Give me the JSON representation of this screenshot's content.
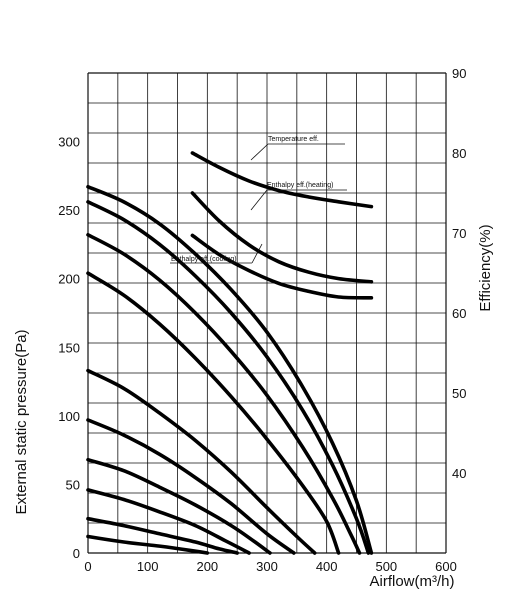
{
  "chart_data": {
    "type": "line",
    "xlabel": "Airflow(m³/h)",
    "ylabel": "External static pressure(Pa)",
    "y2label": "Efficiency(%)",
    "xlim": [
      0,
      600
    ],
    "ylim": [
      0,
      350
    ],
    "y2lim": [
      30,
      90
    ],
    "grid": true,
    "x_ticks": [
      "0",
      "100",
      "200",
      "300",
      "400",
      "500",
      "600"
    ],
    "y_ticks": [
      "0",
      "50",
      "100",
      "150",
      "200",
      "250",
      "300"
    ],
    "y2_ticks": [
      "40",
      "50",
      "60",
      "70",
      "80",
      "90"
    ],
    "static_pressure_series": [
      {
        "x": [
          0,
          60,
          120,
          170,
          200
        ],
        "y": [
          12,
          8,
          5,
          2,
          0
        ]
      },
      {
        "x": [
          0,
          60,
          120,
          180,
          220,
          250
        ],
        "y": [
          25,
          20,
          14,
          8,
          3,
          0
        ]
      },
      {
        "x": [
          0,
          60,
          120,
          180,
          230,
          270
        ],
        "y": [
          46,
          39,
          30,
          20,
          9,
          0
        ]
      },
      {
        "x": [
          0,
          60,
          120,
          180,
          240,
          280,
          305
        ],
        "y": [
          68,
          60,
          48,
          35,
          20,
          8,
          0
        ]
      },
      {
        "x": [
          0,
          60,
          120,
          180,
          240,
          300,
          345
        ],
        "y": [
          97,
          86,
          72,
          55,
          36,
          14,
          0
        ]
      },
      {
        "x": [
          0,
          60,
          120,
          180,
          240,
          300,
          350,
          380
        ],
        "y": [
          133,
          120,
          102,
          82,
          59,
          33,
          12,
          0
        ]
      },
      {
        "x": [
          0,
          60,
          120,
          180,
          240,
          300,
          360,
          400,
          420
        ],
        "y": [
          204,
          188,
          167,
          142,
          114,
          83,
          49,
          23,
          0
        ]
      },
      {
        "x": [
          0,
          60,
          120,
          180,
          240,
          300,
          360,
          410,
          440,
          455
        ],
        "y": [
          232,
          218,
          199,
          175,
          147,
          115,
          77,
          40,
          14,
          0
        ]
      },
      {
        "x": [
          0,
          60,
          120,
          180,
          240,
          300,
          360,
          410,
          450,
          470
        ],
        "y": [
          256,
          243,
          225,
          202,
          175,
          143,
          104,
          64,
          25,
          0
        ]
      },
      {
        "x": [
          0,
          60,
          120,
          180,
          240,
          300,
          360,
          410,
          450,
          475
        ],
        "y": [
          267,
          256,
          240,
          218,
          192,
          161,
          121,
          80,
          38,
          0
        ]
      }
    ],
    "efficiency_series": [
      {
        "name": "Temperature eff.",
        "x": [
          175,
          220,
          270,
          320,
          370,
          420,
          475
        ],
        "y": [
          80,
          78.2,
          76.5,
          75.3,
          74.5,
          73.9,
          73.3
        ]
      },
      {
        "name": "Enthalpy eff.(heating)",
        "x": [
          175,
          220,
          270,
          320,
          370,
          420,
          475
        ],
        "y": [
          75,
          71.5,
          68.5,
          66.4,
          65.1,
          64.3,
          63.9
        ]
      },
      {
        "name": "Enthalpy eff.(cooling)",
        "x": [
          175,
          220,
          270,
          320,
          370,
          420,
          475
        ],
        "y": [
          69.7,
          67.3,
          65.3,
          63.7,
          62.7,
          62.0,
          61.9
        ]
      }
    ]
  }
}
